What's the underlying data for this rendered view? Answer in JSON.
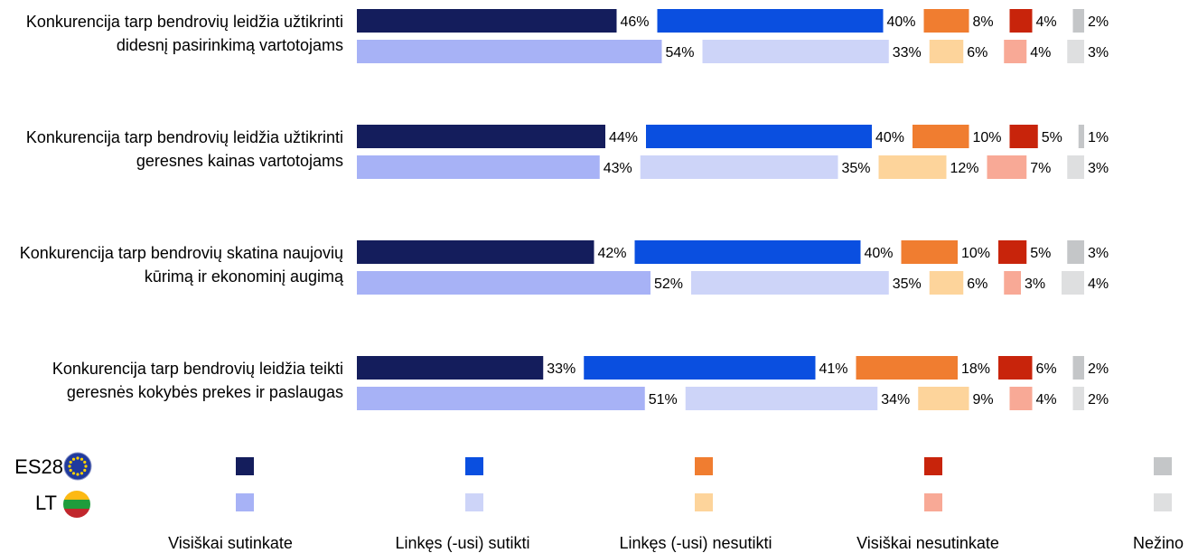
{
  "chart_data": {
    "type": "bar",
    "stacked": true,
    "orientation": "horizontal",
    "grid": false,
    "legend_position": "bottom",
    "title": "",
    "xlabel": "",
    "ylabel": "",
    "categories": [
      [
        "Konkurencija tarp bendrovių leidžia užtikrinti",
        "didesnį pasirinkimą vartotojams"
      ],
      [
        "Konkurencija tarp bendrovių leidžia užtikrinti",
        "geresnes kainas vartotojams"
      ],
      [
        "Konkurencija tarp bendrovių skatina naujovių",
        "kūrimą ir ekonominį augimą"
      ],
      [
        "Konkurencija tarp bendrovių leidžia teikti",
        "geresnės kokybės prekes ir paslaugas"
      ]
    ],
    "groups": [
      {
        "name": "ES28",
        "colors": [
          "#141d5c",
          "#0a4fe0",
          "#f07d30",
          "#c8240b",
          "#c4c6c8"
        ],
        "values": [
          [
            46,
            40,
            8,
            4,
            2
          ],
          [
            44,
            40,
            10,
            5,
            1
          ],
          [
            42,
            40,
            10,
            5,
            3
          ],
          [
            33,
            41,
            18,
            6,
            2
          ]
        ]
      },
      {
        "name": "LT",
        "colors": [
          "#a7b2f6",
          "#cdd4f8",
          "#fdd49b",
          "#f8a996",
          "#dedfe0"
        ],
        "values": [
          [
            54,
            33,
            6,
            4,
            3
          ],
          [
            43,
            35,
            12,
            7,
            3
          ],
          [
            52,
            35,
            6,
            3,
            4
          ],
          [
            51,
            34,
            9,
            4,
            2
          ]
        ]
      }
    ],
    "series": [
      {
        "name": "Visiškai sutinkate"
      },
      {
        "name": "Linkęs (-usi) sutikti"
      },
      {
        "name": "Linkęs (-usi) nesutikti"
      },
      {
        "name": "Visiškai nesutinkate"
      },
      {
        "name": "Nežino"
      }
    ],
    "value_suffix": "%"
  }
}
